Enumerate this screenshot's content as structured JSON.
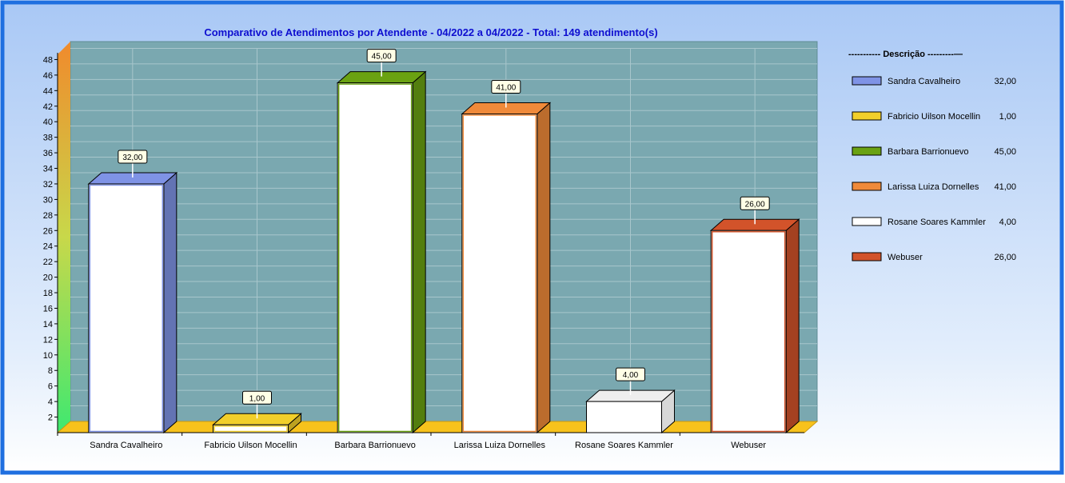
{
  "chart_data": {
    "type": "bar",
    "title": "Comparativo de Atendimentos por Atendente - 04/2022 a 04/2022 - Total: 149 atendimento(s)",
    "categories": [
      "Sandra Cavalheiro",
      "Fabricio Uilson Mocellin",
      "Barbara Barrionuevo",
      "Larissa Luiza Dornelles",
      "Rosane Soares Kammler",
      "Webuser"
    ],
    "values": [
      32,
      1,
      45,
      41,
      4,
      26
    ],
    "value_labels": [
      "32,00",
      "1,00",
      "45,00",
      "41,00",
      "4,00",
      "26,00"
    ],
    "ylim": [
      0,
      48
    ],
    "yticks": [
      2,
      4,
      6,
      8,
      10,
      12,
      14,
      16,
      18,
      20,
      22,
      24,
      26,
      28,
      30,
      32,
      34,
      36,
      38,
      40,
      42,
      44,
      46,
      48
    ],
    "grid": true,
    "legend": {
      "position": "right",
      "title": "----------- Descrição ---------—",
      "entries": [
        {
          "name": "Sandra Cavalheiro",
          "value": "32,00",
          "color": "#7f93e6"
        },
        {
          "name": "Fabricio Uilson Mocellin",
          "value": "1,00",
          "color": "#f2cf2a"
        },
        {
          "name": "Barbara Barrionuevo",
          "value": "45,00",
          "color": "#6aa212"
        },
        {
          "name": "Larissa Luiza Dornelles",
          "value": "41,00",
          "color": "#f08a3a"
        },
        {
          "name": "Rosane Soares Kammler",
          "value": "4,00",
          "color": "#ffffff"
        },
        {
          "name": "Webuser",
          "value": "26,00",
          "color": "#d2532a"
        }
      ]
    },
    "colors": {
      "frame_border": "#1f6fe0",
      "plot_background": "#7aa8b0",
      "title": "#0e0ed0",
      "floor": "#f7c21c"
    }
  }
}
